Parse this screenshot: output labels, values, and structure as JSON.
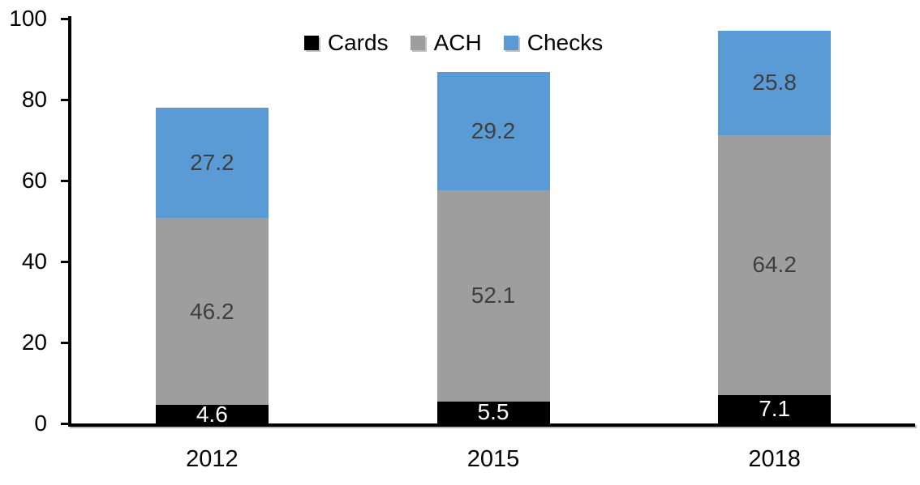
{
  "chart_data": {
    "type": "bar",
    "stacked": true,
    "title": "",
    "xlabel": "",
    "ylabel": "",
    "categories": [
      "2012",
      "2015",
      "2018"
    ],
    "series": [
      {
        "name": "Cards",
        "color": "#000000",
        "label_color": "#ffffff",
        "values": [
          4.6,
          5.5,
          7.1
        ]
      },
      {
        "name": "ACH",
        "color": "#9e9e9e",
        "label_color": "#3f3f3f",
        "values": [
          46.2,
          52.1,
          64.2
        ]
      },
      {
        "name": "Checks",
        "color": "#5b9bd5",
        "label_color": "#3f3f3f",
        "values": [
          27.2,
          29.2,
          25.8
        ]
      }
    ],
    "totals": [
      78.0,
      86.8,
      97.1
    ],
    "ylim": [
      0,
      100
    ],
    "yticks": [
      0,
      20,
      40,
      60,
      80,
      100
    ],
    "grid": false,
    "legend_position": "top",
    "data_labels": true,
    "axis_color": "#000000"
  }
}
